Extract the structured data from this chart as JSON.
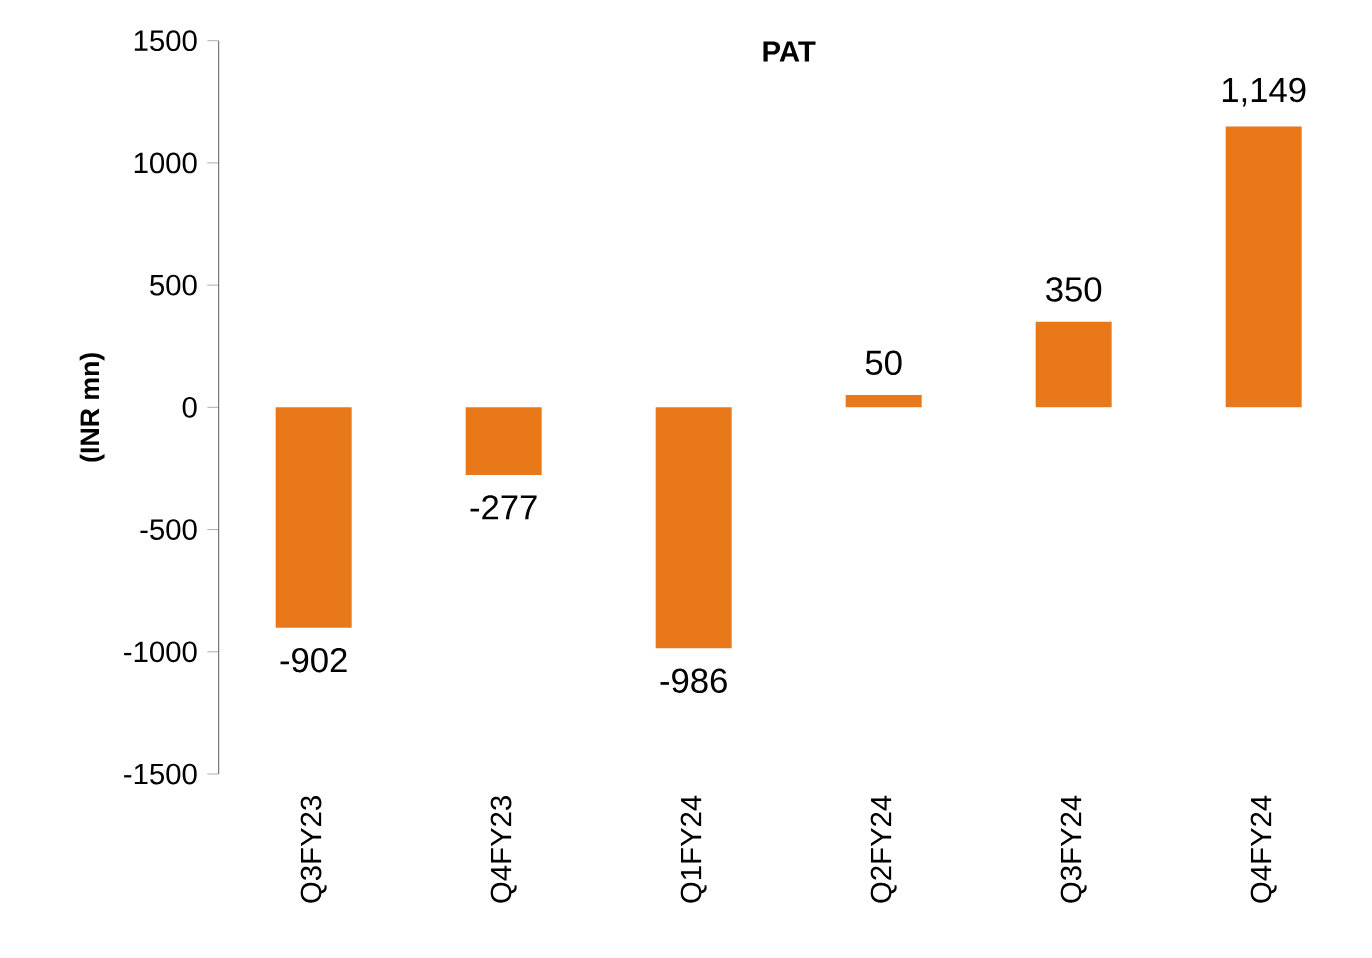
{
  "chart_data": {
    "type": "bar",
    "title": "PAT",
    "ylabel": "(INR mn)",
    "categories": [
      "Q3FY23",
      "Q4FY23",
      "Q1FY24",
      "Q2FY24",
      "Q3FY24",
      "Q4FY24"
    ],
    "values": [
      -902,
      -277,
      -986,
      50,
      350,
      1149
    ],
    "value_labels": [
      "-902",
      "-277",
      "-986",
      "50",
      "350",
      "1,149"
    ],
    "color": "#e8781a",
    "ylim": [
      -1500,
      1500
    ],
    "yticks": [
      -1500,
      -1000,
      -500,
      0,
      500,
      1000,
      1500
    ],
    "grid": false
  }
}
